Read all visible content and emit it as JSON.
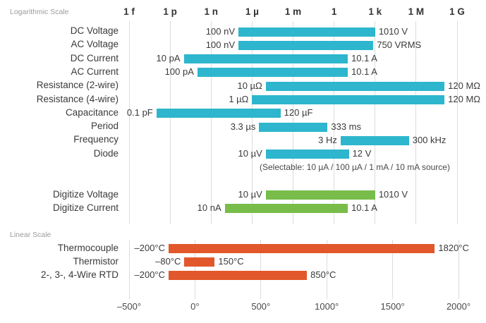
{
  "sections": {
    "log_label": "Logarithmic Scale",
    "linear_label": "Linear Scale",
    "diode_note": "(Selectable: 10 µA / 100 µA / 1 mA / 10 mA source)"
  },
  "chart_data": {
    "type": "bar",
    "subtype": "range-bars",
    "colors": {
      "measure": "#2db6cd",
      "digitize": "#78bd49",
      "temperature": "#e2572b"
    },
    "log_axis": {
      "scale": "log",
      "exp_range": [
        -15,
        9
      ],
      "ticks": [
        {
          "label": "1 f",
          "exp": -15
        },
        {
          "label": "1 p",
          "exp": -12
        },
        {
          "label": "1 n",
          "exp": -9
        },
        {
          "label": "1 µ",
          "exp": -6
        },
        {
          "label": "1 m",
          "exp": -3
        },
        {
          "label": "1",
          "exp": 0
        },
        {
          "label": "1 k",
          "exp": 3
        },
        {
          "label": "1 M",
          "exp": 6
        },
        {
          "label": "1 G",
          "exp": 9
        }
      ]
    },
    "log_rows": [
      {
        "label": "DC Voltage",
        "min_label": "100 nV",
        "max_label": "1010 V",
        "min": 1e-07,
        "max": 1010,
        "group": "measure"
      },
      {
        "label": "AC Voltage",
        "min_label": "100 nV",
        "max_label": "750 VRMS",
        "min": 1e-07,
        "max": 750,
        "group": "measure"
      },
      {
        "label": "DC Current",
        "min_label": "10 pA",
        "max_label": "10.1 A",
        "min": 1e-11,
        "max": 10.1,
        "group": "measure"
      },
      {
        "label": "AC Current",
        "min_label": "100 pA",
        "max_label": "10.1 A",
        "min": 1e-10,
        "max": 10.1,
        "group": "measure"
      },
      {
        "label": "Resistance (2-wire)",
        "min_label": "10 µΩ",
        "max_label": "120 MΩ",
        "min": 1e-05,
        "max": 120000000.0,
        "group": "measure"
      },
      {
        "label": "Resistance (4-wire)",
        "min_label": "1 µΩ",
        "max_label": "120 MΩ",
        "min": 1e-06,
        "max": 120000000.0,
        "group": "measure"
      },
      {
        "label": "Capacitance",
        "min_label": "0.1 pF",
        "max_label": "120 µF",
        "min": 1e-13,
        "max": 0.00012,
        "group": "measure"
      },
      {
        "label": "Period",
        "min_label": "3.3 µs",
        "max_label": "333 ms",
        "min": 3.3e-06,
        "max": 0.333,
        "group": "measure"
      },
      {
        "label": "Frequency",
        "min_label": "3 Hz",
        "max_label": "300 kHz",
        "min": 3,
        "max": 300000.0,
        "group": "measure"
      },
      {
        "label": "Diode",
        "min_label": "10 µV",
        "max_label": "12 V",
        "min": 1e-05,
        "max": 12,
        "group": "measure"
      }
    ],
    "digitize_rows": [
      {
        "label": "Digitize Voltage",
        "min_label": "10 µV",
        "max_label": "1010 V",
        "min": 1e-05,
        "max": 1010,
        "group": "digitize"
      },
      {
        "label": "Digitize Current",
        "min_label": "10 nA",
        "max_label": "10.1 A",
        "min": 1e-08,
        "max": 10.1,
        "group": "digitize"
      }
    ],
    "linear_axis": {
      "scale": "linear",
      "range": [
        -500,
        2000
      ],
      "ticks": [
        {
          "label": "–500°",
          "value": -500
        },
        {
          "label": "0°",
          "value": 0
        },
        {
          "label": "500°",
          "value": 500
        },
        {
          "label": "1000°",
          "value": 1000
        },
        {
          "label": "1500°",
          "value": 1500
        },
        {
          "label": "2000°",
          "value": 2000
        }
      ]
    },
    "linear_rows": [
      {
        "label": "Thermocouple",
        "min_label": "–200°C",
        "max_label": "1820°C",
        "min": -200,
        "max": 1820,
        "group": "temperature"
      },
      {
        "label": "Thermistor",
        "min_label": "–80°C",
        "max_label": "150°C",
        "min": -80,
        "max": 150,
        "group": "temperature"
      },
      {
        "label": "2-, 3-, 4-Wire RTD",
        "min_label": "–200°C",
        "max_label": "850°C",
        "min": -200,
        "max": 850,
        "group": "temperature"
      }
    ]
  }
}
